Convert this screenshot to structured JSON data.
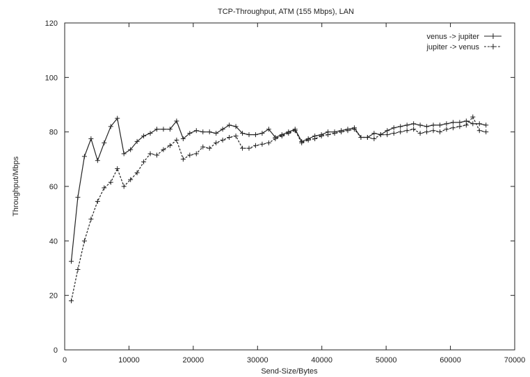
{
  "chart_data": {
    "type": "line",
    "title": "TCP-Throughput, ATM (155 Mbps), LAN",
    "xlabel": "Send-Size/Bytes",
    "ylabel": "Throughput/Mbps",
    "xlim": [
      0,
      70000
    ],
    "ylim": [
      0,
      120
    ],
    "xticks": [
      0,
      10000,
      20000,
      30000,
      40000,
      50000,
      60000,
      70000
    ],
    "yticks": [
      0,
      20,
      40,
      60,
      80,
      100,
      120
    ],
    "xtick_labels": [
      "0",
      "10000",
      "20000",
      "30000",
      "40000",
      "50000",
      "60000",
      "70000"
    ],
    "ytick_labels": [
      "0",
      "20",
      "40",
      "60",
      "80",
      "100",
      "120"
    ],
    "grid": false,
    "legend_position": "top-right",
    "series": [
      {
        "name": "venus -> jupiter",
        "color": "#222222",
        "marker": "plus",
        "line_style": "solid",
        "x": [
          1024,
          2048,
          3072,
          4096,
          5120,
          6144,
          7168,
          8192,
          9216,
          10240,
          11264,
          12288,
          13312,
          14336,
          15360,
          16384,
          17408,
          18432,
          19456,
          20480,
          21504,
          22528,
          23552,
          24576,
          25600,
          26624,
          27648,
          28672,
          29696,
          30720,
          31744,
          32768,
          33792,
          34816,
          35840,
          36864,
          37888,
          38912,
          39936,
          40960,
          41984,
          43008,
          44032,
          45056,
          46080,
          47104,
          48128,
          49152,
          50176,
          51200,
          52224,
          53248,
          54272,
          55296,
          56320,
          57344,
          58368,
          59392,
          60416,
          61440,
          62464,
          63488,
          64512,
          65536
        ],
        "y": [
          32.5,
          56,
          71,
          77.5,
          69.5,
          76,
          82,
          85,
          72,
          73.5,
          76.5,
          78.5,
          79.5,
          81,
          81,
          81,
          84,
          77.5,
          79.5,
          80.5,
          80,
          80,
          79.5,
          81,
          82.5,
          82,
          79.5,
          79,
          79,
          79.5,
          81,
          78,
          79,
          80,
          81,
          76.5,
          77.5,
          78.5,
          79,
          80,
          80,
          80.5,
          81,
          81.5,
          78,
          78,
          79.5,
          79,
          80.5,
          81.5,
          82,
          82.5,
          83,
          82.5,
          82,
          82.5,
          82.5,
          83,
          83.5,
          83.5,
          84,
          83,
          83,
          82.5
        ]
      },
      {
        "name": "jupiter -> venus",
        "color": "#222222",
        "marker": "plus",
        "line_style": "dashed",
        "x": [
          1024,
          2048,
          3072,
          4096,
          5120,
          6144,
          7168,
          8192,
          9216,
          10240,
          11264,
          12288,
          13312,
          14336,
          15360,
          16384,
          17408,
          18432,
          19456,
          20480,
          21504,
          22528,
          23552,
          24576,
          25600,
          26624,
          27648,
          28672,
          29696,
          30720,
          31744,
          32768,
          33792,
          34816,
          35840,
          36864,
          37888,
          38912,
          39936,
          40960,
          41984,
          43008,
          44032,
          45056,
          46080,
          47104,
          48128,
          49152,
          50176,
          51200,
          52224,
          53248,
          54272,
          55296,
          56320,
          57344,
          58368,
          59392,
          60416,
          61440,
          62464,
          63488,
          64512,
          65536
        ],
        "y": [
          18,
          29.5,
          40,
          48,
          54.5,
          59.5,
          61.5,
          66.5,
          60,
          62.5,
          65,
          69,
          72,
          71.5,
          73.5,
          75,
          77,
          70,
          71.5,
          72,
          74.5,
          74,
          76,
          77,
          78,
          78.5,
          74,
          74,
          75,
          75.5,
          76,
          77.5,
          78.5,
          79.5,
          80.5,
          76,
          77,
          77.5,
          78.5,
          79,
          79.5,
          80,
          80.5,
          81,
          78,
          78,
          77.5,
          79,
          79,
          79.5,
          80,
          80.5,
          81,
          79.5,
          80,
          80.5,
          80,
          81,
          81.5,
          82,
          82.5,
          85.5,
          80.5,
          80
        ]
      }
    ]
  }
}
